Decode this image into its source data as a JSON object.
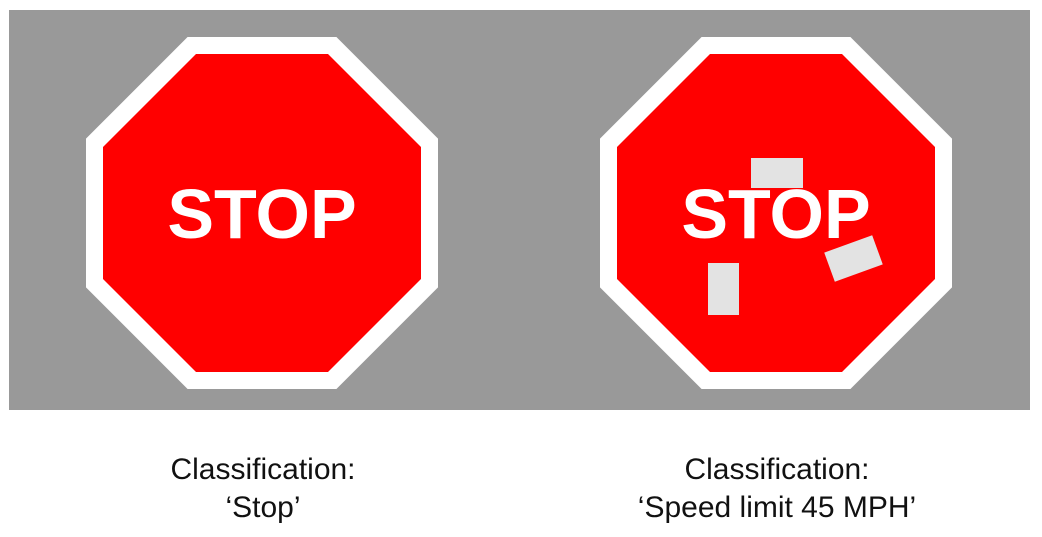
{
  "scene": {
    "panel_color": "#999999",
    "sign_red": "#ff0000",
    "sign_border": "#ffffff",
    "sticker_color": "#e3e3e3"
  },
  "left": {
    "sign_text": "STOP",
    "caption_label": "Classification:",
    "caption_value": "‘Stop’"
  },
  "right": {
    "sign_text": "STOP",
    "caption_label": "Classification:",
    "caption_value": "‘Speed limit 45 MPH’"
  }
}
